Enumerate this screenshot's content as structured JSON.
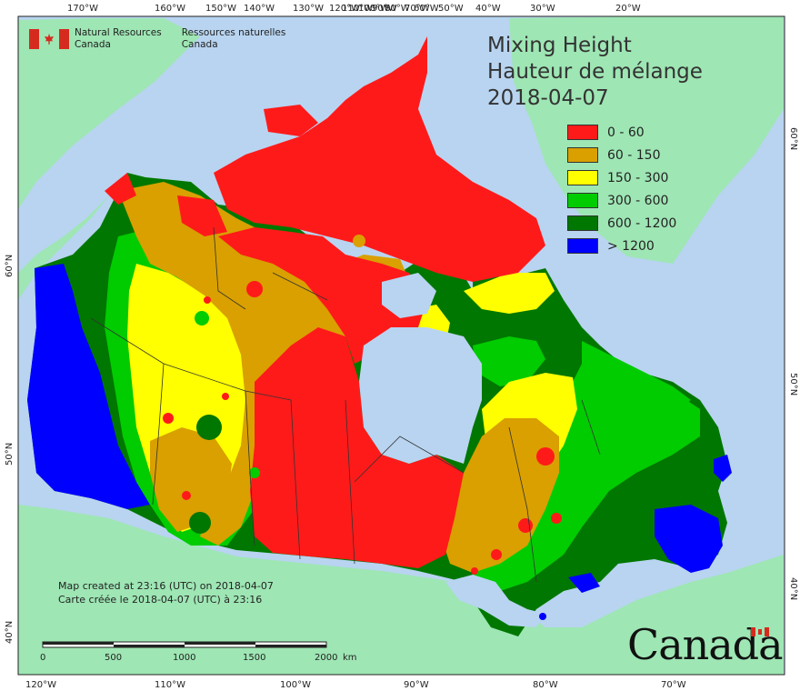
{
  "title": {
    "line1": "Mixing Height",
    "line2": "Hauteur de mélange",
    "date": "2018-04-07"
  },
  "legend": [
    {
      "label": "0 - 60",
      "color": "#ff1a1a"
    },
    {
      "label": "60 - 150",
      "color": "#d9a000"
    },
    {
      "label": "150 - 300",
      "color": "#ffff00"
    },
    {
      "label": "300 - 600",
      "color": "#00cc00"
    },
    {
      "label": "600 - 1200",
      "color": "#007700"
    },
    {
      "label": "> 1200",
      "color": "#0000ff"
    }
  ],
  "agency": {
    "en_line1": "Natural Resources",
    "en_line2": "Canada",
    "fr_line1": "Ressources naturelles",
    "fr_line2": "Canada"
  },
  "credit": {
    "en": "Map created at 23:16 (UTC) on 2018-04-07",
    "fr": "Carte créée le 2018-04-07 (UTC) à 23:16"
  },
  "scale_bar": {
    "ticks": [
      "0",
      "500",
      "1000",
      "1500",
      "2000"
    ],
    "unit": "km"
  },
  "wordmark": "Canada",
  "top_longitudes": [
    "170°W",
    "160°W",
    "150°W",
    "140°W",
    "130°W",
    "120°W",
    "110°W",
    "100°W",
    "90°W",
    "80°W",
    "70°W",
    "60°W",
    "50°W",
    "40°W",
    "30°W",
    "20°W"
  ],
  "bottom_longitudes": [
    "120°W",
    "110°W",
    "100°W",
    "90°W",
    "80°W",
    "70°W"
  ],
  "left_latitudes": [
    "60°N",
    "50°N",
    "40°N"
  ],
  "right_latitudes": [
    "60°N",
    "50°N",
    "40°N"
  ],
  "colors": {
    "ocean": "#b8d4f0",
    "land_outside": "#9ee6b4",
    "frame": "#222222"
  }
}
